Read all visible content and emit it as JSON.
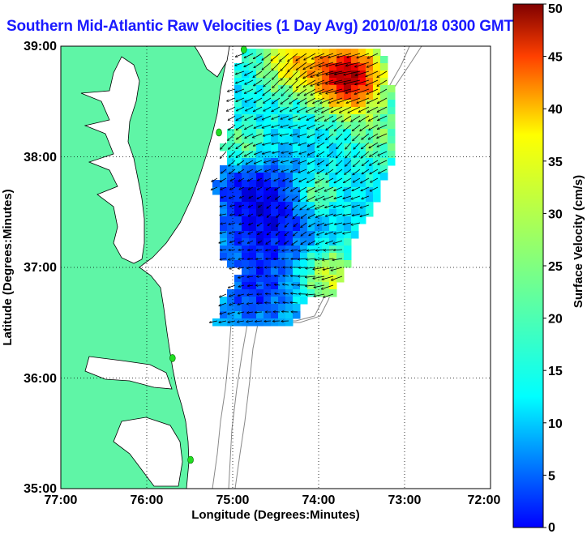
{
  "title": "Southern Mid-Atlantic Raw Velocities (1 Day Avg) 2010/01/18 0300 GMT",
  "map": {
    "xlabel": "Longitude (Degrees:Minutes)",
    "ylabel": "Latitude (Degrees:Minutes)",
    "x_ticks": [
      "77:00",
      "76:00",
      "75:00",
      "74:00",
      "73:00",
      "72:00"
    ],
    "y_ticks": [
      "39:00",
      "38:00",
      "37:00",
      "36:00",
      "35:00"
    ],
    "xlim": [
      -77,
      -72
    ],
    "ylim": [
      35,
      39
    ],
    "grid": "dotted",
    "land_color": "#5ff5a6",
    "ocean_color": "#ffffff",
    "station_color": "#22dd22"
  },
  "colorbar": {
    "label": "Surface Velocity (cm/s)",
    "ticks": [
      "0",
      "5",
      "10",
      "15",
      "20",
      "25",
      "30",
      "35",
      "40",
      "45",
      "50"
    ],
    "min": 0,
    "max": 50,
    "colormap": "jet"
  },
  "stations": [
    {
      "lon": -74.87,
      "lat": 38.97
    },
    {
      "lon": -75.16,
      "lat": 38.22
    },
    {
      "lon": -75.7,
      "lat": 36.18
    },
    {
      "lon": -75.49,
      "lat": 35.26
    }
  ]
}
